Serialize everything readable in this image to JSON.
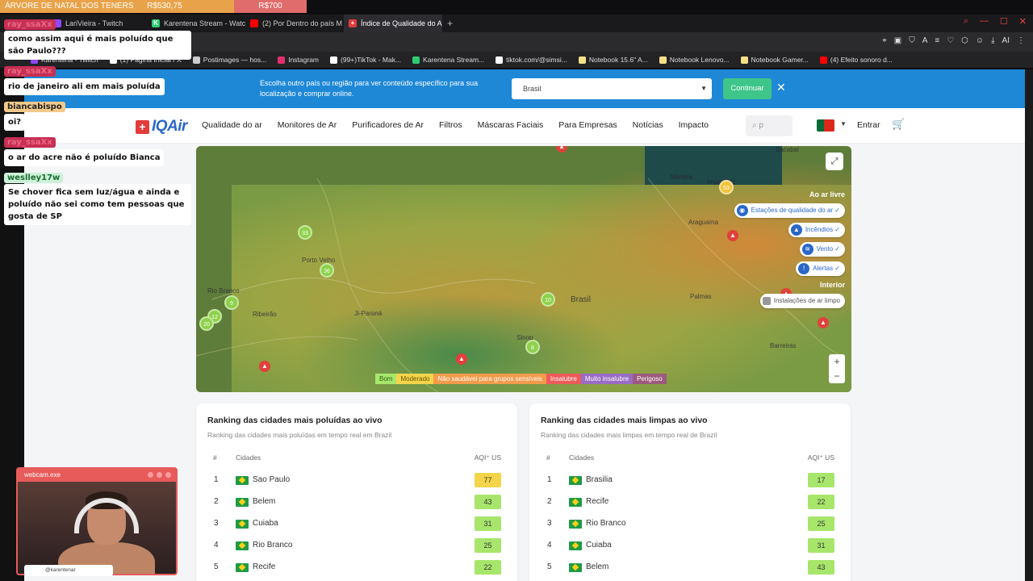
{
  "stream": {
    "goal_label": "ÁRVORE DE NATAL DOS TENERS",
    "goal_value": "R$530,75",
    "goal_target": "R$700"
  },
  "tabs": [
    {
      "label": "LariVieira - Twitch",
      "color": "#9146ff"
    },
    {
      "label": "Karentena Stream - Watc",
      "color": "#2ecc71",
      "ico": "K"
    },
    {
      "label": "(2) Por Dentro do país M",
      "color": "#ff0000"
    },
    {
      "label": "Índice de Qualidade do A",
      "color": "#e43b3b",
      "active": true
    }
  ],
  "bookmarks": [
    {
      "label": "Karentena - Twitch",
      "color": "#9146ff"
    },
    {
      "label": "(1) Página Inicial / X",
      "color": "#ffffff"
    },
    {
      "label": "Postimages — hos...",
      "color": "#cccccc"
    },
    {
      "label": "Instagram",
      "color": "#e1306c"
    },
    {
      "label": "(99+)TikTok - Mak...",
      "color": "#ffffff"
    },
    {
      "label": "Karentena Stream...",
      "color": "#2ecc71"
    },
    {
      "label": "tiktok.com/@simsi...",
      "color": "#ffffff"
    },
    {
      "label": "Notebook 15.6\" A...",
      "color": "#f5e08a"
    },
    {
      "label": "Notebook Lenovo...",
      "color": "#f5e08a"
    },
    {
      "label": "Notebook Gamer...",
      "color": "#f5e08a"
    },
    {
      "label": "(4) Efeito sonoro d...",
      "color": "#ff0000"
    }
  ],
  "country_bar": {
    "text": "Escolha outro país ou região para ver conteúdo específico para sua localização e comprar online.",
    "selected_country": "Brasil",
    "continue_label": "Continuar"
  },
  "nav": {
    "logo": "IQAir",
    "links": [
      "Qualidade do ar",
      "Monitores de Ar",
      "Purificadores de Ar",
      "Filtros",
      "Máscaras Faciais",
      "Para Empresas",
      "Notícias",
      "Impacto"
    ],
    "search_placeholder": "p",
    "login": "Entrar"
  },
  "map": {
    "live_heading": "Ao ar livre",
    "indoor_heading": "Interior",
    "toggles": [
      "Estações de qualidade do ar ✓",
      "Incêndios ✓",
      "Vento ✓",
      "Alertas ✓"
    ],
    "indoor_toggle": "Instalações de ar limpo",
    "legend": [
      {
        "label": "Bom",
        "color": "#a7e66b",
        "text": "#2b5d12"
      },
      {
        "label": "Moderado",
        "color": "#f4d44a",
        "text": "#6b5200"
      },
      {
        "label": "Não saudável para grupos sensíveis",
        "color": "#f29b4b",
        "text": "#fff"
      },
      {
        "label": "Insalubre",
        "color": "#ee5a5a",
        "text": "#fff"
      },
      {
        "label": "Muito insalubre",
        "color": "#9a6cc4",
        "text": "#fff"
      },
      {
        "label": "Perigoso",
        "color": "#9c5b7e",
        "text": "#fff"
      }
    ],
    "cities": [
      "Bacabal",
      "Marabá",
      "Imperatriz",
      "Araguaína",
      "Porto Velho",
      "Rio Branco",
      "Ribeirão",
      "Ji-Paraná",
      "Brasil",
      "Palmas",
      "Sinop",
      "Barreiras"
    ],
    "clusters": [
      "53",
      "33",
      "36",
      "9",
      "12",
      "20",
      "10",
      "8"
    ]
  },
  "polluted": {
    "title": "Ranking das cidades mais poluídas ao vivo",
    "subtitle": "Ranking das cidades mais poluídas em tempo real em Brazil",
    "col_rank": "#",
    "col_city": "Cidades",
    "col_aqi": "AQI⁺ US",
    "rows": [
      {
        "rank": "1",
        "city": "Sao Paulo",
        "aqi": "77",
        "color": "#f4d44a"
      },
      {
        "rank": "2",
        "city": "Belem",
        "aqi": "43",
        "color": "#a7e66b"
      },
      {
        "rank": "3",
        "city": "Cuiaba",
        "aqi": "31",
        "color": "#a7e66b"
      },
      {
        "rank": "4",
        "city": "Rio Branco",
        "aqi": "25",
        "color": "#a7e66b"
      },
      {
        "rank": "5",
        "city": "Recife",
        "aqi": "22",
        "color": "#a7e66b"
      }
    ]
  },
  "clean": {
    "title": "Ranking das cidades mais limpas ao vivo",
    "subtitle": "Ranking das cidades mais limpas em tempo real de Brazil",
    "col_rank": "#",
    "col_city": "Cidades",
    "col_aqi": "AQI⁺ US",
    "rows": [
      {
        "rank": "1",
        "city": "Brasilia",
        "aqi": "17",
        "color": "#a7e66b"
      },
      {
        "rank": "2",
        "city": "Recife",
        "aqi": "22",
        "color": "#a7e66b"
      },
      {
        "rank": "3",
        "city": "Rio Branco",
        "aqi": "25",
        "color": "#a7e66b"
      },
      {
        "rank": "4",
        "city": "Cuiaba",
        "aqi": "31",
        "color": "#a7e66b"
      },
      {
        "rank": "5",
        "city": "Belem",
        "aqi": "43",
        "color": "#a7e66b"
      }
    ]
  },
  "chat": [
    {
      "user": "ray_ssaXx",
      "style": "pink",
      "msg": "como assim aqui é mais poluído que são Paulo???"
    },
    {
      "user": "ray_ssaXx",
      "style": "pink",
      "msg": "rio de janeiro ali em mais poluída"
    },
    {
      "user": "biancabispo",
      "style": "alt",
      "msg": "oi?"
    },
    {
      "user": "ray_ssaXx",
      "style": "pink",
      "msg": "o ar do acre não é poluído Bianca"
    },
    {
      "user": "weslley17w",
      "style": "green",
      "msg": "Se chover fica sem luz/água e ainda e poluído não sei como tem pessoas que gosta de SP"
    }
  ],
  "webcam": {
    "title": "webcam.exe",
    "handle": "@karentenar"
  }
}
